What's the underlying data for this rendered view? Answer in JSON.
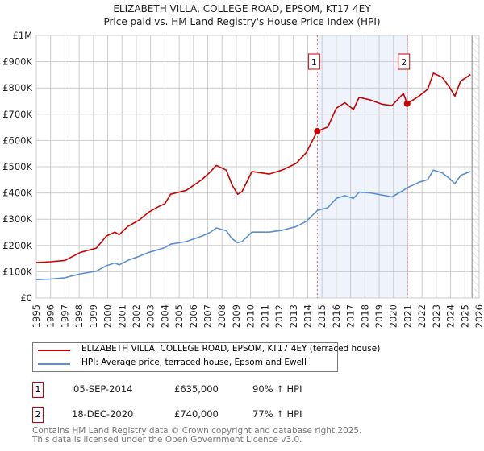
{
  "title_line1": "ELIZABETH VILLA, COLLEGE ROAD, EPSOM, KT17 4EY",
  "title_line2": "Price paid vs. HM Land Registry's House Price Index (HPI)",
  "chart_data": {
    "type": "line",
    "title": "ELIZABETH VILLA, COLLEGE ROAD, EPSOM, KT17 4EY — Price paid vs. HM Land Registry's House Price Index (HPI)",
    "xlim": [
      1995,
      2026
    ],
    "ylim": [
      0,
      1000000
    ],
    "x_ticks": [
      "1995",
      "1996",
      "1997",
      "1998",
      "1999",
      "2000",
      "2001",
      "2002",
      "2003",
      "2004",
      "2005",
      "2006",
      "2007",
      "2008",
      "2009",
      "2010",
      "2011",
      "2012",
      "2013",
      "2014",
      "2015",
      "2016",
      "2017",
      "2018",
      "2019",
      "2020",
      "2021",
      "2022",
      "2023",
      "2024",
      "2025",
      "2026"
    ],
    "y_ticks": [
      {
        "v": 0,
        "label": "£0"
      },
      {
        "v": 100000,
        "label": "£100K"
      },
      {
        "v": 200000,
        "label": "£200K"
      },
      {
        "v": 300000,
        "label": "£300K"
      },
      {
        "v": 400000,
        "label": "£400K"
      },
      {
        "v": 500000,
        "label": "£500K"
      },
      {
        "v": 600000,
        "label": "£600K"
      },
      {
        "v": 700000,
        "label": "£700K"
      },
      {
        "v": 800000,
        "label": "£800K"
      },
      {
        "v": 900000,
        "label": "£900K"
      },
      {
        "v": 1000000,
        "label": "£1M"
      }
    ],
    "grid": true,
    "shaded_range": [
      2014.67,
      2020.96
    ],
    "data_end": 2025.5,
    "series": [
      {
        "name": "ELIZABETH VILLA, COLLEGE ROAD, EPSOM, KT17 4EY (terraced house)",
        "color": "#cc0000",
        "x": [
          1995,
          1996,
          1997,
          1998.1,
          1999.2,
          1999.9,
          2000.5,
          2000.8,
          2001.4,
          2002.2,
          2002.9,
          2003.6,
          2004.0,
          2004.4,
          2005.5,
          2006.6,
          2007.2,
          2007.6,
          2008.3,
          2008.7,
          2009.1,
          2009.4,
          2010.1,
          2011.3,
          2012.2,
          2013.2,
          2013.9,
          2014.67,
          2015.4,
          2016.0,
          2016.6,
          2017.2,
          2017.6,
          2018.4,
          2019.2,
          2019.9,
          2020.7,
          2020.96,
          2021.8,
          2022.4,
          2022.8,
          2023.4,
          2023.9,
          2024.3,
          2024.7,
          2025.4
        ],
        "y": [
          135000,
          138000,
          143000,
          174000,
          190000,
          236000,
          251000,
          241000,
          272000,
          297000,
          328000,
          349000,
          359000,
          395000,
          410000,
          451000,
          482000,
          505000,
          487000,
          431000,
          395000,
          405000,
          482000,
          472000,
          487000,
          513000,
          554000,
          635000,
          651000,
          723000,
          744000,
          718000,
          764000,
          754000,
          738000,
          733000,
          779000,
          740000,
          769000,
          795000,
          856000,
          841000,
          805000,
          769000,
          826000,
          851000
        ]
      },
      {
        "name": "HPI: Average price, terraced house, Epsom and Ewell",
        "color": "#5b8fd4",
        "x": [
          1995,
          1996,
          1997,
          1998.1,
          1999.2,
          1999.9,
          2000.5,
          2000.8,
          2001.4,
          2002.2,
          2002.9,
          2003.6,
          2004.0,
          2004.4,
          2005.5,
          2006.6,
          2007.2,
          2007.6,
          2008.3,
          2008.7,
          2009.1,
          2009.4,
          2010.1,
          2011.3,
          2012.2,
          2013.2,
          2013.9,
          2014.67,
          2015.4,
          2016.0,
          2016.6,
          2017.2,
          2017.6,
          2018.4,
          2019.2,
          2019.9,
          2020.7,
          2020.96,
          2021.8,
          2022.4,
          2022.8,
          2023.4,
          2023.9,
          2024.3,
          2024.7,
          2025.4
        ],
        "y": [
          70000,
          72000,
          77000,
          92000,
          102000,
          123000,
          133000,
          126000,
          143000,
          159000,
          174000,
          185000,
          192000,
          205000,
          215000,
          236000,
          251000,
          267000,
          256000,
          226000,
          210000,
          215000,
          251000,
          251000,
          258000,
          272000,
          292000,
          333000,
          344000,
          379000,
          390000,
          379000,
          403000,
          400000,
          392000,
          385000,
          410000,
          420000,
          441000,
          451000,
          487000,
          477000,
          456000,
          436000,
          467000,
          482000
        ]
      }
    ],
    "sales": [
      {
        "marker": "1",
        "x": 2014.67,
        "y": 635000
      },
      {
        "marker": "2",
        "x": 2020.96,
        "y": 740000
      }
    ]
  },
  "legend": {
    "red_label": "ELIZABETH VILLA, COLLEGE ROAD, EPSOM, KT17 4EY (terraced house)",
    "blue_label": "HPI: Average price, terraced house, Epsom and Ewell"
  },
  "transactions": [
    {
      "marker": "1",
      "date": "05-SEP-2014",
      "price": "£635,000",
      "hpi": "90% ↑ HPI"
    },
    {
      "marker": "2",
      "date": "18-DEC-2020",
      "price": "£740,000",
      "hpi": "77% ↑ HPI"
    }
  ],
  "footer_line1": "Contains HM Land Registry data © Crown copyright and database right 2025.",
  "footer_line2": "This data is licensed under the Open Government Licence v3.0."
}
